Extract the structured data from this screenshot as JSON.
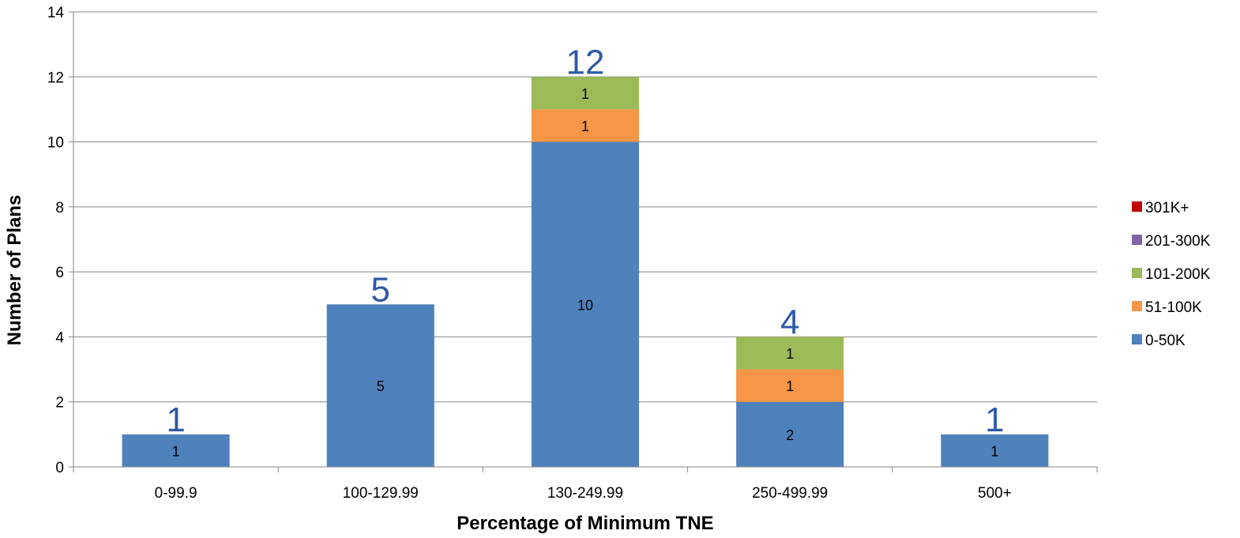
{
  "chart_data": {
    "type": "bar",
    "stacked": true,
    "title": "",
    "xlabel": "Percentage of Minimum TNE",
    "ylabel": "Number of Plans",
    "ylim": [
      0,
      14
    ],
    "yticks": [
      0,
      2,
      4,
      6,
      8,
      10,
      12,
      14
    ],
    "grid": true,
    "legend_position": "right",
    "categories": [
      "0-99.9",
      "100-129.99",
      "130-249.99",
      "250-499.99",
      "500+"
    ],
    "series": [
      {
        "name": "0-50K",
        "color": "#4F81BD",
        "values": [
          1,
          5,
          10,
          2,
          1
        ]
      },
      {
        "name": "51-100K",
        "color": "#F79646",
        "values": [
          0,
          0,
          1,
          1,
          0
        ]
      },
      {
        "name": "101-200K",
        "color": "#9BBB59",
        "values": [
          0,
          0,
          1,
          1,
          0
        ]
      },
      {
        "name": "201-300K",
        "color": "#8064A2",
        "values": [
          0,
          0,
          0,
          0,
          0
        ]
      },
      {
        "name": "301K+",
        "color": "#C00000",
        "values": [
          0,
          0,
          0,
          0,
          0
        ]
      }
    ],
    "totals": [
      1,
      5,
      12,
      4,
      1
    ],
    "total_label_color": "#2E5AA8"
  }
}
